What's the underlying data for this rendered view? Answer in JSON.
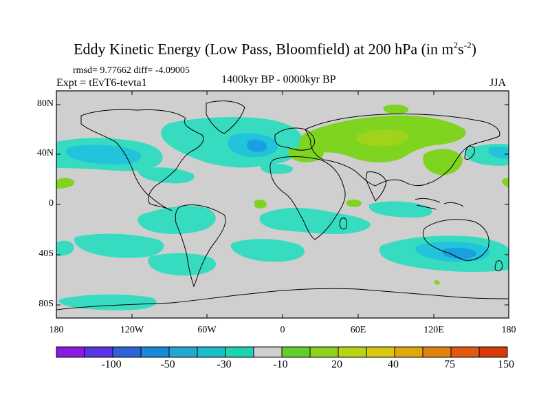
{
  "title": "Eddy Kinetic Energy (Low Pass, Bloomfield) at 200 hPa (in m",
  "title_sup1": "2",
  "title_mid": "s",
  "title_sup2": "-2",
  "title_end": ")",
  "stats": "rmsd= 9.77662 diff= -4.09005",
  "experiment": "Expt = tEvT6-tevta1",
  "period": "1400kyr BP - 0000kyr BP",
  "season": "JJA",
  "lat_labels": [
    "80N",
    "40N",
    "0",
    "40S",
    "80S"
  ],
  "lon_labels": [
    "180",
    "120W",
    "60W",
    "0",
    "60E",
    "120E",
    "180"
  ],
  "colorbar_labels": [
    "-100",
    "-50",
    "-30",
    "-10",
    "20",
    "40",
    "75",
    "150"
  ],
  "colorbar_colors": [
    "#8b1ae0",
    "#5a35e6",
    "#2e62d9",
    "#1a88d8",
    "#22a8d4",
    "#19bcc8",
    "#1fd2b2",
    "#cfcfcf",
    "#63cf2a",
    "#8fd21e",
    "#b8d414",
    "#d9c80f",
    "#e0a80f",
    "#e0840f",
    "#e05a0f",
    "#d93a0a"
  ],
  "colors": {
    "ocean_background": "#cfcfcf",
    "light_negative": "#37dcc0",
    "medium_negative": "#22c4dc",
    "strong_negative": "#1aa0e0",
    "light_positive": "#7fd420",
    "medium_positive": "#a0d41a",
    "coastline": "#000000"
  }
}
